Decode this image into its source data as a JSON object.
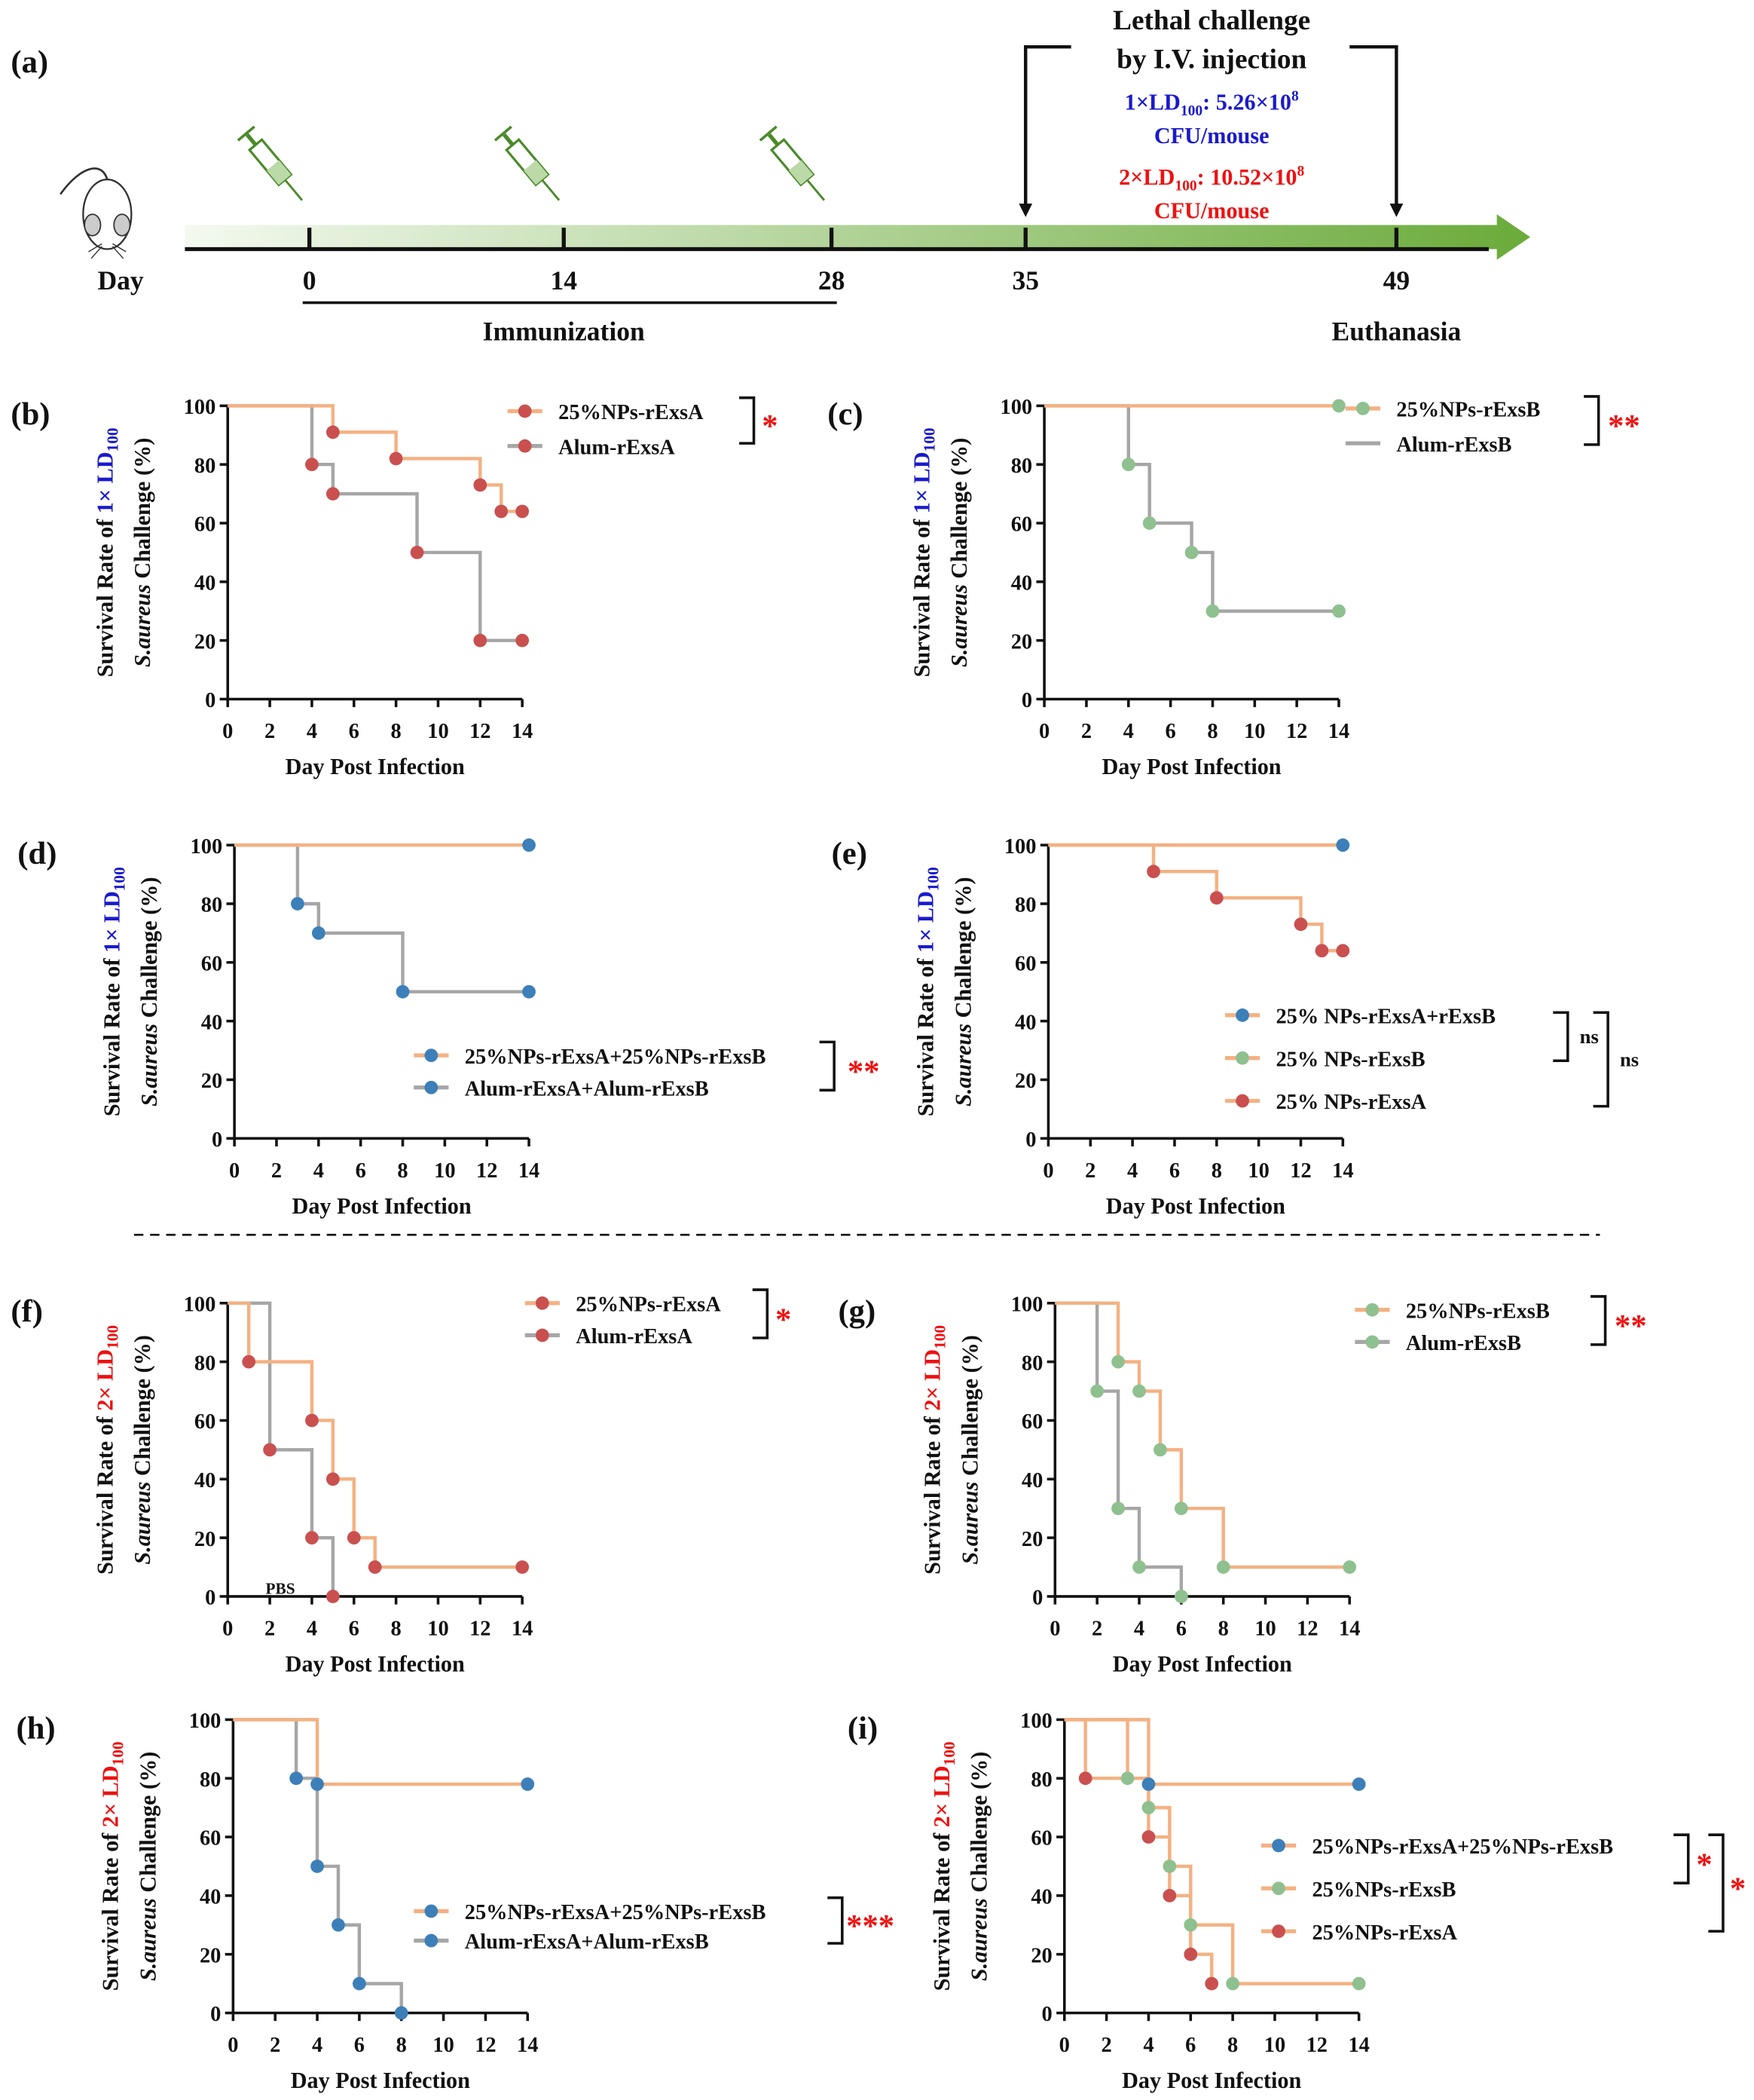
{
  "colors": {
    "orange": "#f4b183",
    "gray": "#a6a6a6",
    "red_dot": "#c9504f",
    "green_dot": "#8fc08f",
    "blue_dot": "#3d7fb9",
    "ld1": "#1a1acc",
    "ld2": "#ee1111",
    "syringe": "#4a8a2a",
    "arrow_start": "#f4f9f0",
    "arrow_end": "#6aab3a",
    "star": "#ee1111"
  },
  "timeline": {
    "panel_label": "(a)",
    "day_label": "Day",
    "ticks": [
      "0",
      "14",
      "28",
      "35",
      "49"
    ],
    "immunization_label": "Immunization",
    "euthanasia_label": "Euthanasia",
    "challenge_title_1": "Lethal challenge",
    "challenge_title_2": "by I.V. injection",
    "dose1": {
      "prefix": "1×LD",
      "sub": "100",
      "value": ": 5.26×10",
      "sup": "8",
      "unit": "CFU/mouse"
    },
    "dose2": {
      "prefix": "2×LD",
      "sub": "100",
      "value": ": 10.52×10",
      "sup": "8",
      "unit": "CFU/mouse"
    },
    "icons": [
      "mouse-icon",
      "syringe-icon",
      "syringe-icon",
      "syringe-icon"
    ]
  },
  "chart_data": [
    {
      "id": "b",
      "type": "line",
      "step": true,
      "panel_label": "(b)",
      "dose": "1×",
      "xlabel": "Day Post Infection",
      "ylabel_1": "Survival Rate of ",
      "ylabel_ld": "1× LD",
      "ylabel_sub": "100",
      "ylabel_2_italic": "S.aureus",
      "ylabel_2": " Challenge (%)",
      "xlim": [
        0,
        14
      ],
      "ylim": [
        0,
        100
      ],
      "xticks": [
        "0",
        "2",
        "4",
        "6",
        "8",
        "10",
        "12",
        "14"
      ],
      "yticks": [
        "0",
        "20",
        "40",
        "60",
        "80",
        "100"
      ],
      "series": [
        {
          "name": "25%NPs-rExsA",
          "line": "orange",
          "dot": "red_dot",
          "x": [
            0,
            5,
            8,
            12,
            13,
            14
          ],
          "y": [
            100,
            91,
            82,
            73,
            64,
            64
          ],
          "marks": [
            5,
            8,
            12,
            13,
            14
          ]
        },
        {
          "name": "Alum-rExsA",
          "line": "gray",
          "dot": "red_dot",
          "x": [
            0,
            4,
            5,
            9,
            12,
            14
          ],
          "y": [
            100,
            80,
            70,
            50,
            20,
            20
          ],
          "marks": [
            4,
            5,
            9,
            12,
            14
          ]
        }
      ],
      "significance": [
        {
          "label": "*"
        }
      ]
    },
    {
      "id": "c",
      "type": "line",
      "step": true,
      "panel_label": "(c)",
      "dose": "1×",
      "xlabel": "Day Post Infection",
      "ylabel_1": "Survival Rate of ",
      "ylabel_ld": "1× LD",
      "ylabel_sub": "100",
      "ylabel_2_italic": "S.aureus",
      "ylabel_2": " Challenge (%)",
      "xlim": [
        0,
        14
      ],
      "ylim": [
        0,
        100
      ],
      "xticks": [
        "0",
        "2",
        "4",
        "6",
        "8",
        "10",
        "12",
        "14"
      ],
      "yticks": [
        "0",
        "20",
        "40",
        "60",
        "80",
        "100"
      ],
      "series": [
        {
          "name": "25%NPs-rExsB",
          "line": "orange",
          "dot": "green_dot",
          "x": [
            0,
            14
          ],
          "y": [
            100,
            100
          ],
          "marks": [
            14
          ]
        },
        {
          "name": "Alum-rExsB",
          "line": "gray",
          "dot": "green_dot",
          "legend_no_dot": true,
          "x": [
            0,
            4,
            5,
            7,
            8,
            14
          ],
          "y": [
            100,
            80,
            60,
            50,
            30,
            30
          ],
          "marks": [
            4,
            5,
            7,
            8,
            14
          ]
        }
      ],
      "significance": [
        {
          "label": "**"
        }
      ]
    },
    {
      "id": "d",
      "type": "line",
      "step": true,
      "panel_label": "(d)",
      "dose": "1×",
      "xlabel": "Day Post Infection",
      "ylabel_1": "Survival Rate of ",
      "ylabel_ld": "1× LD",
      "ylabel_sub": "100",
      "ylabel_2_italic": "S.aureus",
      "ylabel_2": " Challenge (%)",
      "xlim": [
        0,
        14
      ],
      "ylim": [
        0,
        100
      ],
      "xticks": [
        "0",
        "2",
        "4",
        "6",
        "8",
        "10",
        "12",
        "14"
      ],
      "yticks": [
        "0",
        "20",
        "40",
        "60",
        "80",
        "100"
      ],
      "series": [
        {
          "name": "25%NPs-rExsA+25%NPs-rExsB",
          "line": "orange",
          "dot": "blue_dot",
          "x": [
            0,
            14
          ],
          "y": [
            100,
            100
          ],
          "marks": [
            14
          ]
        },
        {
          "name": "Alum-rExsA+Alum-rExsB",
          "line": "gray",
          "dot": "blue_dot",
          "x": [
            0,
            3,
            4,
            8,
            14
          ],
          "y": [
            100,
            80,
            70,
            50,
            50
          ],
          "marks": [
            3,
            4,
            8,
            14
          ]
        }
      ],
      "significance": [
        {
          "label": "**"
        }
      ]
    },
    {
      "id": "e",
      "type": "line",
      "step": true,
      "panel_label": "(e)",
      "dose": "1×",
      "xlabel": "Day Post Infection",
      "ylabel_1": "Survival Rate of ",
      "ylabel_ld": "1× LD",
      "ylabel_sub": "100",
      "ylabel_2_italic": "S.aureus",
      "ylabel_2": " Challenge (%)",
      "xlim": [
        0,
        14
      ],
      "ylim": [
        0,
        100
      ],
      "xticks": [
        "0",
        "2",
        "4",
        "6",
        "8",
        "10",
        "12",
        "14"
      ],
      "yticks": [
        "0",
        "20",
        "40",
        "60",
        "80",
        "100"
      ],
      "series": [
        {
          "name": "25% NPs-rExsA+rExsB",
          "line": "orange",
          "dot": "blue_dot",
          "x": [
            0,
            14
          ],
          "y": [
            100,
            100
          ],
          "marks": [
            14
          ]
        },
        {
          "name": "25% NPs-rExsB",
          "line": "orange",
          "dot": "green_dot",
          "x": [
            0,
            14
          ],
          "y": [
            100,
            100
          ],
          "marks": []
        },
        {
          "name": "25% NPs-rExsA",
          "line": "orange",
          "dot": "red_dot",
          "x": [
            0,
            5,
            8,
            12,
            13,
            14
          ],
          "y": [
            100,
            91,
            82,
            73,
            64,
            64
          ],
          "marks": [
            5,
            8,
            12,
            13,
            14
          ]
        }
      ],
      "significance": [
        {
          "label": "ns"
        },
        {
          "label": "ns"
        }
      ]
    },
    {
      "id": "f",
      "type": "line",
      "step": true,
      "panel_label": "(f)",
      "dose": "2×",
      "xlabel": "Day Post Infection",
      "ylabel_1": "Survival Rate of ",
      "ylabel_ld": "2× LD",
      "ylabel_sub": "100",
      "ylabel_2_italic": "S.aureus",
      "ylabel_2": " Challenge (%)",
      "xlim": [
        0,
        14
      ],
      "ylim": [
        0,
        100
      ],
      "xticks": [
        "0",
        "2",
        "4",
        "6",
        "8",
        "10",
        "12",
        "14"
      ],
      "yticks": [
        "0",
        "20",
        "40",
        "60",
        "80",
        "100"
      ],
      "annotation": "PBS",
      "series": [
        {
          "name": "25%NPs-rExsA",
          "line": "orange",
          "dot": "red_dot",
          "x": [
            0,
            1,
            4,
            5,
            6,
            7,
            14
          ],
          "y": [
            100,
            80,
            60,
            40,
            20,
            10,
            10
          ],
          "marks": [
            1,
            4,
            5,
            6,
            7,
            14
          ]
        },
        {
          "name": "Alum-rExsA",
          "line": "gray",
          "dot": "red_dot",
          "x": [
            0,
            2,
            4,
            5
          ],
          "y": [
            100,
            50,
            20,
            0
          ],
          "marks": [
            2,
            4,
            5
          ]
        }
      ],
      "significance": [
        {
          "label": "*"
        }
      ]
    },
    {
      "id": "g",
      "type": "line",
      "step": true,
      "panel_label": "(g)",
      "dose": "2×",
      "xlabel": "Day Post Infection",
      "ylabel_1": "Survival Rate of ",
      "ylabel_ld": "2× LD",
      "ylabel_sub": "100",
      "ylabel_2_italic": "S.aureus",
      "ylabel_2": " Challenge (%)",
      "xlim": [
        0,
        14
      ],
      "ylim": [
        0,
        100
      ],
      "xticks": [
        "0",
        "2",
        "4",
        "6",
        "8",
        "10",
        "12",
        "14"
      ],
      "yticks": [
        "0",
        "20",
        "40",
        "60",
        "80",
        "100"
      ],
      "series": [
        {
          "name": "25%NPs-rExsB",
          "line": "orange",
          "dot": "green_dot",
          "x": [
            0,
            3,
            4,
            5,
            6,
            8,
            14
          ],
          "y": [
            100,
            80,
            70,
            50,
            30,
            10,
            10
          ],
          "marks": [
            3,
            4,
            5,
            6,
            8,
            14
          ]
        },
        {
          "name": "Alum-rExsB",
          "line": "gray",
          "dot": "green_dot",
          "x": [
            0,
            2,
            3,
            4,
            6
          ],
          "y": [
            100,
            70,
            30,
            10,
            0
          ],
          "marks": [
            2,
            3,
            4,
            6
          ]
        }
      ],
      "significance": [
        {
          "label": "**"
        }
      ]
    },
    {
      "id": "h",
      "type": "line",
      "step": true,
      "panel_label": "(h)",
      "dose": "2×",
      "xlabel": "Day Post Infection",
      "ylabel_1": "Survival Rate of ",
      "ylabel_ld": "2× LD",
      "ylabel_sub": "100",
      "ylabel_2_italic": "S.aureus",
      "ylabel_2": " Challenge (%)",
      "xlim": [
        0,
        14
      ],
      "ylim": [
        0,
        100
      ],
      "xticks": [
        "0",
        "2",
        "4",
        "6",
        "8",
        "10",
        "12",
        "14"
      ],
      "yticks": [
        "0",
        "20",
        "40",
        "60",
        "80",
        "100"
      ],
      "series": [
        {
          "name": "25%NPs-rExsA+25%NPs-rExsB",
          "line": "orange",
          "dot": "blue_dot",
          "x": [
            0,
            4,
            14
          ],
          "y": [
            100,
            78,
            78
          ],
          "marks": [
            4,
            14
          ]
        },
        {
          "name": "Alum-rExsA+Alum-rExsB",
          "line": "gray",
          "dot": "blue_dot",
          "x": [
            0,
            3,
            4,
            5,
            6,
            8
          ],
          "y": [
            100,
            80,
            50,
            30,
            10,
            0
          ],
          "marks": [
            3,
            4,
            5,
            6,
            8
          ]
        }
      ],
      "significance": [
        {
          "label": "***"
        }
      ]
    },
    {
      "id": "i",
      "type": "line",
      "step": true,
      "panel_label": "(i)",
      "dose": "2×",
      "xlabel": "Day Post Infection",
      "ylabel_1": "Survival Rate of ",
      "ylabel_ld": "2× LD",
      "ylabel_sub": "100",
      "ylabel_2_italic": "S.aureus",
      "ylabel_2": " Challenge (%)",
      "xlim": [
        0,
        14
      ],
      "ylim": [
        0,
        100
      ],
      "xticks": [
        "0",
        "2",
        "4",
        "6",
        "8",
        "10",
        "12",
        "14"
      ],
      "yticks": [
        "0",
        "20",
        "40",
        "60",
        "80",
        "100"
      ],
      "series": [
        {
          "name": "25%NPs-rExsA+25%NPs-rExsB",
          "line": "orange",
          "dot": "blue_dot",
          "x": [
            0,
            4,
            14
          ],
          "y": [
            100,
            78,
            78
          ],
          "marks": [
            4,
            14
          ]
        },
        {
          "name": "25%NPs-rExsB",
          "line": "orange",
          "dot": "green_dot",
          "x": [
            0,
            3,
            4,
            5,
            6,
            8,
            14
          ],
          "y": [
            100,
            80,
            70,
            50,
            30,
            10,
            10
          ],
          "marks": [
            3,
            4,
            5,
            6,
            8,
            14
          ]
        },
        {
          "name": "25%NPs-rExsA",
          "line": "orange",
          "dot": "red_dot",
          "x": [
            0,
            1,
            4,
            5,
            6,
            7
          ],
          "y": [
            100,
            80,
            60,
            40,
            20,
            10
          ],
          "marks": [
            1,
            4,
            5,
            6,
            7
          ]
        }
      ],
      "significance": [
        {
          "label": "*"
        },
        {
          "label": "*"
        }
      ]
    }
  ]
}
